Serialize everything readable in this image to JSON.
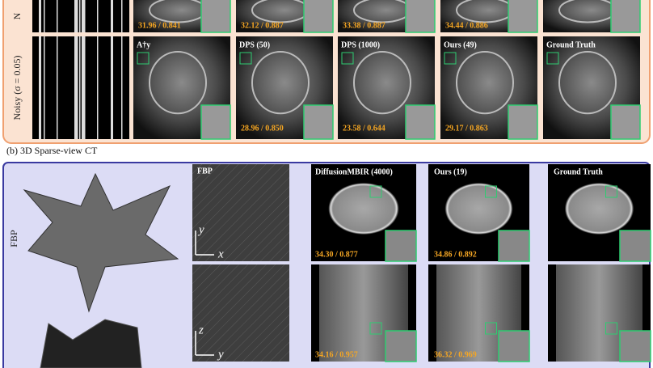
{
  "panel_a": {
    "rows": [
      {
        "label": "N",
        "metrics": [
          "31.96 / 0.841",
          "32.12 / 0.887",
          "33.38 / 0.887",
          "34.44 / 0.886"
        ]
      },
      {
        "label": "Noisy (σ = 0.05)",
        "columns": [
          "A†y",
          "DPS (50)",
          "DPS (1000)",
          "Ours (49)",
          "Ground Truth"
        ],
        "metrics": [
          "28.96 / 0.850",
          "23.58 / 0.644",
          "29.17 / 0.863"
        ]
      }
    ]
  },
  "panel_b": {
    "title": "(b) 3D Sparse-view CT",
    "row_label": "FBP",
    "columns": [
      "FBP",
      "DiffusionMBIR (4000)",
      "Ours (19)",
      "Ground Truth"
    ],
    "axes": [
      [
        "y",
        "x"
      ],
      [
        "z",
        "y"
      ]
    ],
    "metrics": [
      [
        "34.30 / 0.877",
        "34.86 / 0.892"
      ],
      [
        "34.16 / 0.957",
        "36.32 / 0.969"
      ]
    ]
  }
}
